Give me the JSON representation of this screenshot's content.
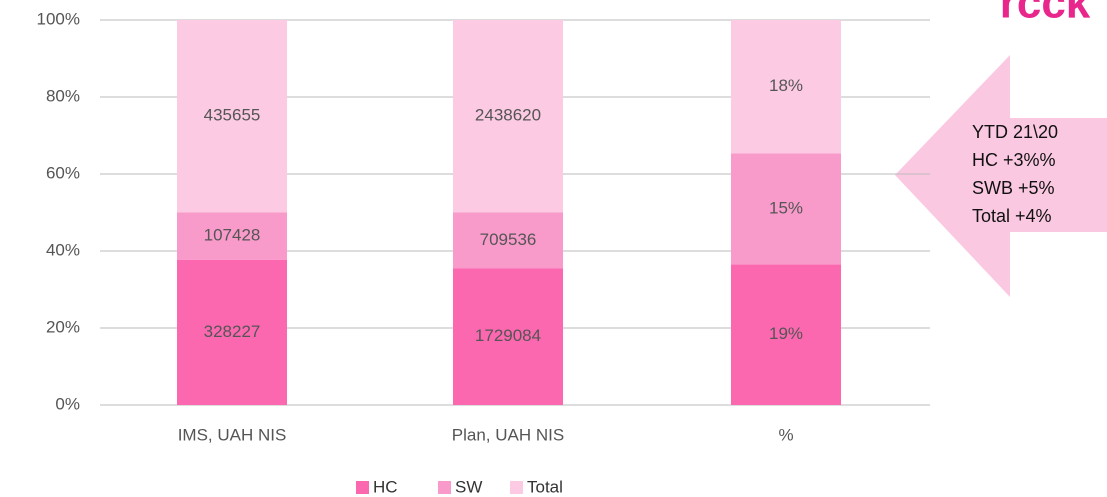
{
  "chart_data": {
    "type": "bar",
    "stacking": "percent",
    "categories": [
      "IMS, UAH NIS",
      "Plan, UAH NIS",
      "%"
    ],
    "series": [
      {
        "name": "HC",
        "color": "#fb68b0",
        "values": [
          328227,
          1729084,
          19
        ],
        "value_labels": [
          "328227",
          "1729084",
          "19%"
        ]
      },
      {
        "name": "SW",
        "color": "#f99bca",
        "values": [
          107428,
          709536,
          15
        ],
        "value_labels": [
          "107428",
          "709536",
          "15%"
        ]
      },
      {
        "name": "Total",
        "color": "#fccae3",
        "values": [
          435655,
          2438620,
          18
        ],
        "value_labels": [
          "435655",
          "2438620",
          "18%"
        ]
      }
    ],
    "ylim": [
      0,
      100
    ],
    "yticks": [
      {
        "value": 0,
        "label": "0%"
      },
      {
        "value": 20,
        "label": "20%"
      },
      {
        "value": 40,
        "label": "40%"
      },
      {
        "value": 60,
        "label": "60%"
      },
      {
        "value": 80,
        "label": "80%"
      },
      {
        "value": 100,
        "label": "100%"
      }
    ],
    "grid": true,
    "legend": "bottom",
    "annotation": {
      "lines": [
        "YTD 21\\20",
        "HC +3%%",
        "SWB +5%",
        "Total +4%"
      ]
    },
    "logo": "rcck"
  }
}
